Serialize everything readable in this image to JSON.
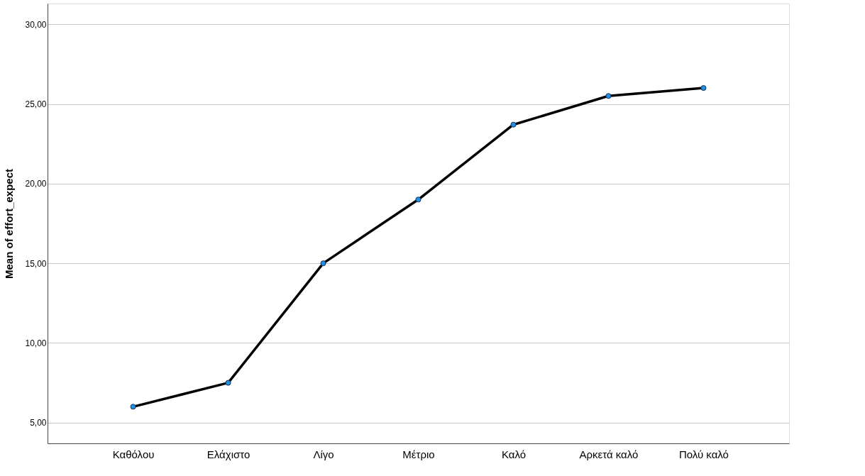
{
  "chart_data": {
    "type": "line",
    "ylabel": "Mean of effort_expect",
    "categories": [
      "Καθόλου",
      "Ελάχιστο",
      "Λίγο",
      "Μέτριο",
      "Καλό",
      "Αρκετά καλό",
      "Πολύ καλό"
    ],
    "series": [
      {
        "color": "#000000",
        "values": [
          6.0,
          7.5,
          15.0,
          19.0,
          23.7,
          25.5,
          26.0
        ]
      }
    ],
    "ylim": [
      3.7,
      31.3
    ],
    "yticks": [
      {
        "value": 5,
        "label": "5,00"
      },
      {
        "value": 10,
        "label": "10,00"
      },
      {
        "value": 15,
        "label": "15,00"
      },
      {
        "value": 20,
        "label": "20,00"
      },
      {
        "value": 25,
        "label": "25,00"
      },
      {
        "value": 30,
        "label": "30,00"
      }
    ],
    "grid": "y",
    "marker": "circle",
    "line_style": "solid"
  }
}
